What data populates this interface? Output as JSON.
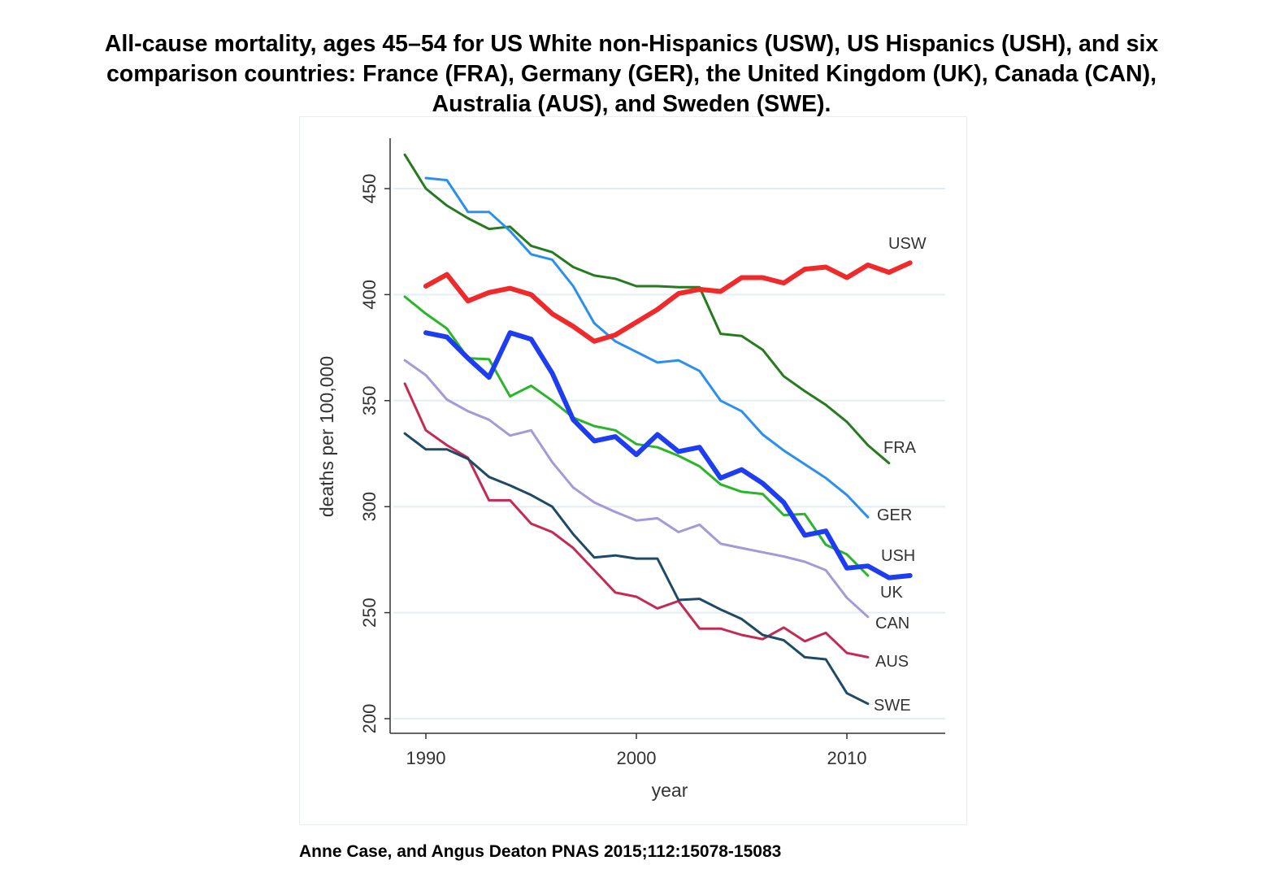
{
  "title_lines": [
    "All-cause mortality, ages 45–54 for US White non-Hispanics (USW), US Hispanics (USH), and six",
    "comparison countries: France (FRA), Germany (GER), the United Kingdom (UK), Canada (CAN),",
    "Australia (AUS), and Sweden (SWE)."
  ],
  "citation": "Anne Case, and Angus Deaton PNAS 2015;112:15078-15083",
  "chart_data": {
    "type": "line",
    "title": "All-cause mortality, ages 45–54 for US White non-Hispanics (USW), US Hispanics (USH), and six comparison countries: France (FRA), Germany (GER), the United Kingdom (UK), Canada (CAN), Australia (AUS), and Sweden (SWE).",
    "xlabel": "year",
    "ylabel": "deaths per 100,000",
    "xlim": [
      1988.5,
      2015
    ],
    "ylim": [
      193,
      473
    ],
    "xticks": [
      1990,
      2000,
      2010
    ],
    "yticks": [
      200,
      250,
      300,
      350,
      400,
      450
    ],
    "grid": "horizontal",
    "legend": "direct labels at line ends",
    "series": [
      {
        "name": "USW",
        "color": "#f02a2a",
        "width": 6,
        "x": [
          1990,
          1991,
          1992,
          1993,
          1994,
          1995,
          1996,
          1997,
          1998,
          1999,
          2000,
          2001,
          2002,
          2003,
          2004,
          2005,
          2006,
          2007,
          2008,
          2009,
          2010,
          2011,
          2012,
          2013
        ],
        "y": [
          404,
          409.5,
          397,
          401,
          403,
          400,
          391,
          385,
          378,
          381,
          387,
          393,
          400.5,
          402.5,
          401.5,
          408,
          408,
          405.5,
          412,
          413,
          408,
          414,
          410.5,
          415
        ]
      },
      {
        "name": "FRA",
        "color": "#267a1f",
        "width": 3,
        "x": [
          1989,
          1990,
          1991,
          1992,
          1993,
          1994,
          1995,
          1996,
          1997,
          1998,
          1999,
          2000,
          2001,
          2002,
          2003,
          2004,
          2005,
          2006,
          2007,
          2008,
          2009,
          2010,
          2011,
          2012
        ],
        "y": [
          466,
          450,
          442,
          436,
          431,
          432,
          423,
          420,
          413,
          409,
          407.5,
          404,
          404,
          403.5,
          403.5,
          381.5,
          380.5,
          374,
          361.5,
          354.5,
          348,
          340,
          329,
          320.5
        ]
      },
      {
        "name": "GER",
        "color": "#2a8ff0",
        "width": 3,
        "x": [
          1990,
          1991,
          1992,
          1993,
          1994,
          1995,
          1996,
          1997,
          1998,
          1999,
          2000,
          2001,
          2002,
          2003,
          2004,
          2005,
          2006,
          2007,
          2008,
          2009,
          2010,
          2011
        ],
        "y": [
          455,
          454,
          439,
          439,
          430,
          419,
          416.5,
          404,
          386.5,
          378,
          373,
          368,
          369,
          364,
          350,
          345,
          334,
          326.5,
          320,
          313.5,
          305.5,
          295
        ]
      },
      {
        "name": "USH",
        "color": "#1e3df2",
        "width": 6,
        "x": [
          1990,
          1991,
          1992,
          1993,
          1994,
          1995,
          1996,
          1997,
          1998,
          1999,
          2000,
          2001,
          2002,
          2003,
          2004,
          2005,
          2006,
          2007,
          2008,
          2009,
          2010,
          2011,
          2012,
          2013
        ],
        "y": [
          382,
          380,
          370,
          361,
          382,
          379,
          363,
          341,
          331,
          333,
          324.5,
          334,
          326,
          328,
          313.5,
          317.5,
          311,
          302,
          286.5,
          288.5,
          271,
          272,
          266.5,
          267.5
        ]
      },
      {
        "name": "UK",
        "color": "#2ab52a",
        "width": 3,
        "x": [
          1989,
          1990,
          1991,
          1992,
          1993,
          1994,
          1995,
          1996,
          1997,
          1998,
          1999,
          2000,
          2001,
          2002,
          2003,
          2004,
          2005,
          2006,
          2007,
          2008,
          2009,
          2010,
          2011
        ],
        "y": [
          399,
          391,
          384,
          370,
          369.5,
          352,
          357,
          350,
          342,
          338,
          336,
          329.5,
          328,
          324,
          319,
          310.5,
          307,
          306,
          296,
          296.5,
          282,
          277.5,
          267.5
        ]
      },
      {
        "name": "CAN",
        "color": "#a39ad8",
        "width": 3,
        "x": [
          1989,
          1990,
          1991,
          1992,
          1993,
          1994,
          1995,
          1996,
          1997,
          1998,
          1999,
          2000,
          2001,
          2002,
          2003,
          2004,
          2005,
          2006,
          2007,
          2008,
          2009,
          2010,
          2011
        ],
        "y": [
          369,
          362,
          350.5,
          345,
          341,
          333.5,
          336,
          321,
          309,
          302,
          297.5,
          293.5,
          294.5,
          288,
          291.5,
          282.5,
          280.5,
          278.5,
          276.5,
          274,
          270,
          257,
          248
        ]
      },
      {
        "name": "AUS",
        "color": "#c42a52",
        "width": 3,
        "x": [
          1989,
          1990,
          1991,
          1992,
          1993,
          1994,
          1995,
          1996,
          1997,
          1998,
          1999,
          2000,
          2001,
          2002,
          2003,
          2004,
          2005,
          2006,
          2007,
          2008,
          2009,
          2010,
          2011
        ],
        "y": [
          358,
          336,
          329,
          323,
          303,
          303,
          292,
          288,
          280.5,
          270,
          259.5,
          257.5,
          252,
          255.5,
          242.5,
          242.5,
          239.5,
          237.5,
          243,
          236.5,
          240.5,
          231,
          229
        ]
      },
      {
        "name": "SWE",
        "color": "#1e4a66",
        "width": 3,
        "x": [
          1989,
          1990,
          1991,
          1992,
          1993,
          1994,
          1995,
          1996,
          1997,
          1998,
          1999,
          2000,
          2001,
          2002,
          2003,
          2004,
          2005,
          2006,
          2007,
          2008,
          2009,
          2010,
          2011
        ],
        "y": [
          334.5,
          327,
          327,
          322.5,
          314,
          310,
          305.5,
          300,
          287,
          276,
          277,
          275.5,
          275.5,
          256,
          256.5,
          251.5,
          247,
          239.5,
          237,
          229,
          228,
          212,
          207
        ]
      }
    ]
  }
}
